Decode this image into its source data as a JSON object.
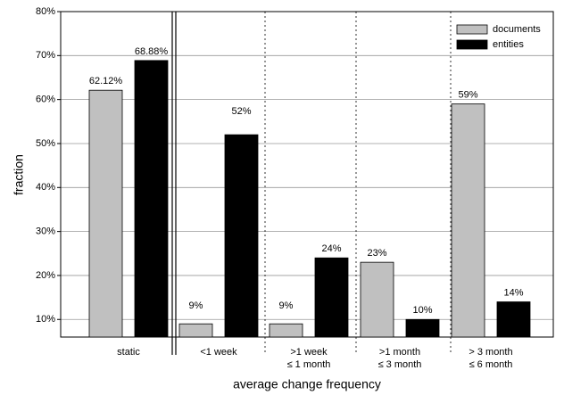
{
  "chart_data": {
    "type": "bar",
    "x_label": "average change frequency",
    "y_label": "fraction",
    "categories": [
      [
        "static"
      ],
      [
        "<1 week"
      ],
      [
        ">1 week",
        "≤ 1 month"
      ],
      [
        ">1 month",
        "≤ 3 month"
      ],
      [
        "> 3 month",
        "≤ 6 month"
      ]
    ],
    "series": [
      {
        "name": "documents",
        "color": "#c0c0c0",
        "values": [
          62.12,
          9,
          9,
          23,
          59
        ],
        "value_labels": [
          "62.12%",
          "9%",
          "9%",
          "23%",
          "59%"
        ]
      },
      {
        "name": "entities",
        "color": "#000000",
        "values": [
          68.88,
          52,
          24,
          10,
          14
        ],
        "value_labels": [
          "68.88%",
          "52%",
          "24%",
          "10%",
          "14%"
        ]
      }
    ],
    "ylim": [
      6,
      80
    ],
    "yticks": [
      {
        "value": 10,
        "label": "10%"
      },
      {
        "value": 20,
        "label": "20%"
      },
      {
        "value": 30,
        "label": "30%"
      },
      {
        "value": 40,
        "label": "40%"
      },
      {
        "value": 50,
        "label": "50%"
      },
      {
        "value": 60,
        "label": "60%"
      },
      {
        "value": 70,
        "label": "70%"
      },
      {
        "value": 80,
        "label": "80%"
      }
    ],
    "grid": true,
    "legend": "upper right"
  }
}
